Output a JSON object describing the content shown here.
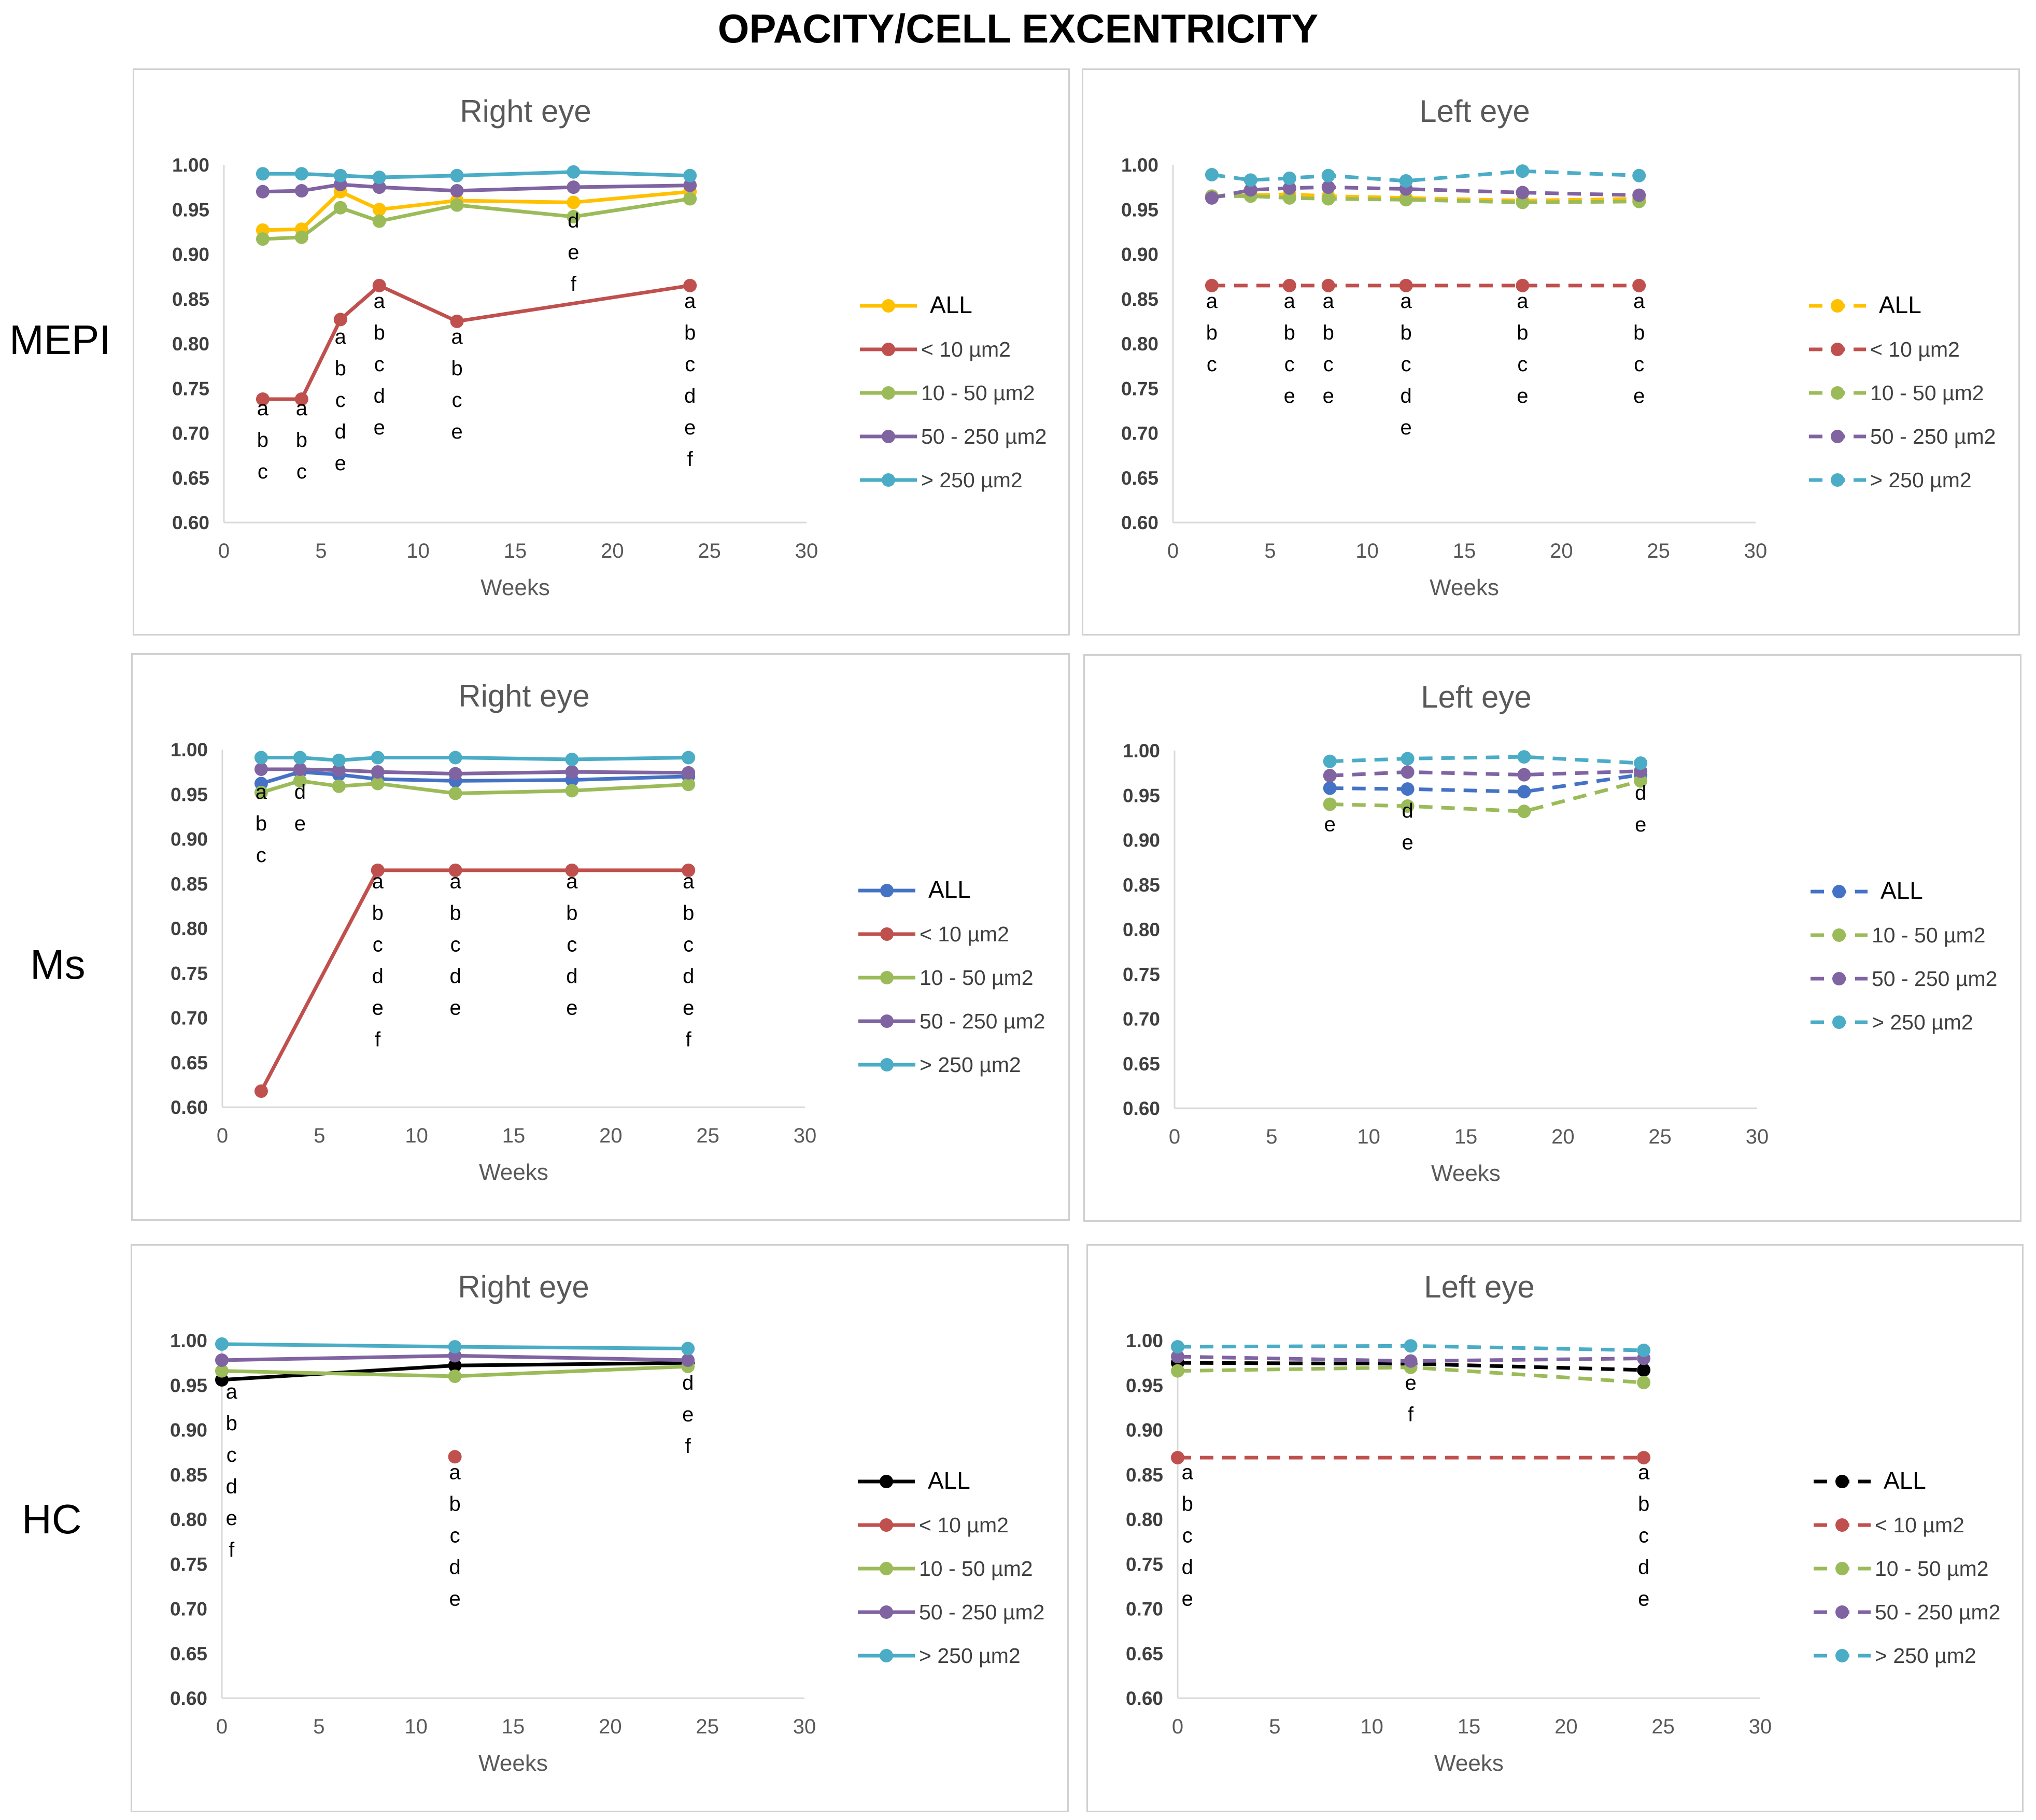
{
  "title": "OPACITY/CELL EXCENTRICITY",
  "rows": [
    "MEPI",
    "Ms",
    "HC"
  ],
  "colors": {
    "ALL": "#FFC000",
    "ALL_ms": "#4472C4",
    "ALL_hc": "#000000",
    "lt10": "#C0504D",
    "r10_50": "#9BBB59",
    "r50_250": "#8064A2",
    "gt250": "#4BACC6"
  },
  "chart_data": [
    {
      "type": "line",
      "row": "MEPI",
      "side": "right",
      "title": "Right eye",
      "xlabel": "Weeks",
      "ylabel": "",
      "xlim": [
        0,
        30
      ],
      "ylim": [
        0.6,
        1.0
      ],
      "dashed": false,
      "xticks": [
        "0",
        "5",
        "10",
        "15",
        "20",
        "25",
        "30"
      ],
      "yticks": [
        "1.00",
        "0.95",
        "0.90",
        "0.85",
        "0.80",
        "0.75",
        "0.70",
        "0.65",
        "0.60"
      ],
      "series": [
        {
          "name": "ALL",
          "color": "#FFC000",
          "x": [
            2,
            4,
            6,
            8,
            12,
            18,
            24
          ],
          "y": [
            0.927,
            0.928,
            0.97,
            0.95,
            0.96,
            0.958,
            0.97
          ]
        },
        {
          "name": "< 10 µm2",
          "color": "#C0504D",
          "x": [
            2,
            4,
            6,
            8,
            12,
            24
          ],
          "y": [
            0.738,
            0.738,
            0.827,
            0.865,
            0.825,
            0.865
          ]
        },
        {
          "name": "10 - 50 µm2",
          "color": "#9BBB59",
          "x": [
            2,
            4,
            6,
            8,
            12,
            18,
            24
          ],
          "y": [
            0.917,
            0.919,
            0.952,
            0.937,
            0.955,
            0.942,
            0.962
          ]
        },
        {
          "name": "50 - 250 µm2",
          "color": "#8064A2",
          "x": [
            2,
            4,
            6,
            8,
            12,
            18,
            24
          ],
          "y": [
            0.97,
            0.971,
            0.978,
            0.975,
            0.971,
            0.975,
            0.977
          ]
        },
        {
          "name": "> 250 µm2",
          "color": "#4BACC6",
          "x": [
            2,
            4,
            6,
            8,
            12,
            18,
            24
          ],
          "y": [
            0.99,
            0.99,
            0.988,
            0.986,
            0.988,
            0.992,
            0.988
          ]
        }
      ],
      "annotations": [
        {
          "x": 2,
          "y": 0.72,
          "lines": [
            "a",
            "b",
            "c"
          ]
        },
        {
          "x": 4,
          "y": 0.72,
          "lines": [
            "a",
            "b",
            "c"
          ]
        },
        {
          "x": 6,
          "y": 0.8,
          "lines": [
            "a",
            "b",
            "c",
            "d",
            "e"
          ]
        },
        {
          "x": 8,
          "y": 0.84,
          "lines": [
            "a",
            "b",
            "c",
            "d",
            "e"
          ]
        },
        {
          "x": 12,
          "y": 0.8,
          "lines": [
            "a",
            "b",
            "c",
            "e"
          ]
        },
        {
          "x": 18,
          "y": 0.93,
          "lines": [
            "d",
            "e",
            "f"
          ]
        },
        {
          "x": 24,
          "y": 0.84,
          "lines": [
            "a",
            "b",
            "c",
            "d",
            "e",
            "f"
          ]
        }
      ]
    },
    {
      "type": "line",
      "row": "MEPI",
      "side": "left",
      "title": "Left eye",
      "xlabel": "Weeks",
      "ylabel": "",
      "xlim": [
        0,
        30
      ],
      "ylim": [
        0.6,
        1.0
      ],
      "dashed": true,
      "xticks": [
        "0",
        "5",
        "10",
        "15",
        "20",
        "25",
        "30"
      ],
      "yticks": [
        "1.00",
        "0.95",
        "0.90",
        "0.85",
        "0.80",
        "0.75",
        "0.70",
        "0.65",
        "0.60"
      ],
      "series": [
        {
          "name": "ALL",
          "color": "#FFC000",
          "x": [
            2,
            4,
            6,
            8,
            12,
            18,
            24
          ],
          "y": [
            0.965,
            0.966,
            0.967,
            0.965,
            0.963,
            0.96,
            0.962
          ]
        },
        {
          "name": "< 10 µm2",
          "color": "#C0504D",
          "x": [
            2,
            6,
            8,
            12,
            18,
            24
          ],
          "y": [
            0.865,
            0.865,
            0.865,
            0.865,
            0.865,
            0.865
          ]
        },
        {
          "name": "10 - 50 µm2",
          "color": "#9BBB59",
          "x": [
            2,
            4,
            6,
            8,
            12,
            18,
            24
          ],
          "y": [
            0.965,
            0.965,
            0.963,
            0.962,
            0.961,
            0.958,
            0.959
          ]
        },
        {
          "name": "50 - 250 µm2",
          "color": "#8064A2",
          "x": [
            2,
            4,
            6,
            8,
            12,
            18,
            24
          ],
          "y": [
            0.963,
            0.972,
            0.974,
            0.975,
            0.973,
            0.969,
            0.966
          ]
        },
        {
          "name": "> 250 µm2",
          "color": "#4BACC6",
          "x": [
            2,
            4,
            6,
            8,
            12,
            18,
            24
          ],
          "y": [
            0.989,
            0.983,
            0.985,
            0.988,
            0.982,
            0.993,
            0.988
          ]
        }
      ],
      "annotations": [
        {
          "x": 2,
          "y": 0.84,
          "lines": [
            "a",
            "b",
            "c"
          ]
        },
        {
          "x": 6,
          "y": 0.84,
          "lines": [
            "a",
            "b",
            "c",
            "e"
          ]
        },
        {
          "x": 8,
          "y": 0.84,
          "lines": [
            "a",
            "b",
            "c",
            "e"
          ]
        },
        {
          "x": 12,
          "y": 0.84,
          "lines": [
            "a",
            "b",
            "c",
            "d",
            "e"
          ]
        },
        {
          "x": 18,
          "y": 0.84,
          "lines": [
            "a",
            "b",
            "c",
            "e"
          ]
        },
        {
          "x": 24,
          "y": 0.84,
          "lines": [
            "a",
            "b",
            "c",
            "e"
          ]
        }
      ]
    },
    {
      "type": "line",
      "row": "Ms",
      "side": "right",
      "title": "Right eye",
      "xlabel": "Weeks",
      "ylabel": "",
      "xlim": [
        0,
        30
      ],
      "ylim": [
        0.6,
        1.0
      ],
      "dashed": false,
      "xticks": [
        "0",
        "5",
        "10",
        "15",
        "20",
        "25",
        "30"
      ],
      "yticks": [
        "1.00",
        "0.95",
        "0.90",
        "0.85",
        "0.80",
        "0.75",
        "0.70",
        "0.65",
        "0.60"
      ],
      "series": [
        {
          "name": "ALL",
          "color": "#4472C4",
          "x": [
            2,
            4,
            6,
            8,
            12,
            18,
            24
          ],
          "y": [
            0.962,
            0.975,
            0.972,
            0.967,
            0.965,
            0.966,
            0.97
          ]
        },
        {
          "name": "< 10 µm2",
          "color": "#C0504D",
          "x": [
            2,
            8,
            12,
            18,
            24
          ],
          "y": [
            0.618,
            0.865,
            0.865,
            0.865,
            0.865
          ]
        },
        {
          "name": "10 - 50 µm2",
          "color": "#9BBB59",
          "x": [
            2,
            4,
            6,
            8,
            12,
            18,
            24
          ],
          "y": [
            0.952,
            0.965,
            0.959,
            0.962,
            0.951,
            0.954,
            0.961
          ]
        },
        {
          "name": "50 - 250 µm2",
          "color": "#8064A2",
          "x": [
            2,
            4,
            6,
            8,
            12,
            18,
            24
          ],
          "y": [
            0.978,
            0.978,
            0.977,
            0.975,
            0.973,
            0.975,
            0.974
          ]
        },
        {
          "name": "> 250 µm2",
          "color": "#4BACC6",
          "x": [
            2,
            4,
            6,
            8,
            12,
            18,
            24
          ],
          "y": [
            0.991,
            0.991,
            0.988,
            0.991,
            0.991,
            0.989,
            0.991
          ]
        }
      ],
      "annotations": [
        {
          "x": 2,
          "y": 0.945,
          "lines": [
            "a",
            "b",
            "c"
          ]
        },
        {
          "x": 4,
          "y": 0.945,
          "lines": [
            "d",
            "e"
          ]
        },
        {
          "x": 8,
          "y": 0.845,
          "lines": [
            "a",
            "b",
            "c",
            "d",
            "e",
            "f"
          ]
        },
        {
          "x": 12,
          "y": 0.845,
          "lines": [
            "a",
            "b",
            "c",
            "d",
            "e"
          ]
        },
        {
          "x": 18,
          "y": 0.845,
          "lines": [
            "a",
            "b",
            "c",
            "d",
            "e"
          ]
        },
        {
          "x": 24,
          "y": 0.845,
          "lines": [
            "a",
            "b",
            "c",
            "d",
            "e",
            "f"
          ]
        }
      ]
    },
    {
      "type": "line",
      "row": "Ms",
      "side": "left",
      "title": "Left eye",
      "xlabel": "Weeks",
      "ylabel": "",
      "xlim": [
        0,
        30
      ],
      "ylim": [
        0.6,
        1.0
      ],
      "dashed": true,
      "xticks": [
        "0",
        "5",
        "10",
        "15",
        "20",
        "25",
        "30"
      ],
      "yticks": [
        "1.00",
        "0.95",
        "0.90",
        "0.85",
        "0.80",
        "0.75",
        "0.70",
        "0.65",
        "0.60"
      ],
      "series": [
        {
          "name": "ALL",
          "color": "#4472C4",
          "x": [
            8,
            12,
            18,
            24
          ],
          "y": [
            0.958,
            0.957,
            0.954,
            0.973
          ]
        },
        {
          "name": "10 - 50 µm2",
          "color": "#9BBB59",
          "x": [
            8,
            12,
            18,
            24
          ],
          "y": [
            0.94,
            0.938,
            0.932,
            0.966
          ]
        },
        {
          "name": "50 - 250 µm2",
          "color": "#8064A2",
          "x": [
            8,
            12,
            18,
            24
          ],
          "y": [
            0.972,
            0.976,
            0.973,
            0.977
          ]
        },
        {
          "name": "> 250 µm2",
          "color": "#4BACC6",
          "x": [
            8,
            12,
            18,
            24
          ],
          "y": [
            0.988,
            0.991,
            0.993,
            0.986
          ]
        }
      ],
      "annotations": [
        {
          "x": 8,
          "y": 0.91,
          "lines": [
            "e"
          ]
        },
        {
          "x": 12,
          "y": 0.925,
          "lines": [
            "d",
            "e"
          ]
        },
        {
          "x": 24,
          "y": 0.945,
          "lines": [
            "d",
            "e"
          ]
        }
      ]
    },
    {
      "type": "line",
      "row": "HC",
      "side": "right",
      "title": "Right eye",
      "xlabel": "Weeks",
      "ylabel": "",
      "xlim": [
        0,
        30
      ],
      "ylim": [
        0.6,
        1.0
      ],
      "dashed": false,
      "xticks": [
        "0",
        "5",
        "10",
        "15",
        "20",
        "25",
        "30"
      ],
      "yticks": [
        "1.00",
        "0.95",
        "0.90",
        "0.85",
        "0.80",
        "0.75",
        "0.70",
        "0.65",
        "0.60"
      ],
      "series": [
        {
          "name": "ALL",
          "color": "#000000",
          "x": [
            0,
            12,
            24
          ],
          "y": [
            0.956,
            0.972,
            0.975
          ]
        },
        {
          "name": "< 10 µm2",
          "color": "#C0504D",
          "x": [
            12
          ],
          "y": [
            0.87
          ]
        },
        {
          "name": "10 - 50 µm2",
          "color": "#9BBB59",
          "x": [
            0,
            12,
            24
          ],
          "y": [
            0.966,
            0.96,
            0.971
          ]
        },
        {
          "name": "50 - 250 µm2",
          "color": "#8064A2",
          "x": [
            0,
            12,
            24
          ],
          "y": [
            0.978,
            0.983,
            0.978
          ]
        },
        {
          "name": "> 250 µm2",
          "color": "#4BACC6",
          "x": [
            0,
            12,
            24
          ],
          "y": [
            0.996,
            0.993,
            0.991
          ]
        }
      ],
      "annotations": [
        {
          "x": 0.5,
          "y": 0.935,
          "lines": [
            "a",
            "b",
            "c",
            "d",
            "e",
            "f"
          ]
        },
        {
          "x": 12,
          "y": 0.845,
          "lines": [
            "a",
            "b",
            "c",
            "d",
            "e"
          ]
        },
        {
          "x": 24,
          "y": 0.945,
          "lines": [
            "d",
            "e",
            "f"
          ]
        }
      ]
    },
    {
      "type": "line",
      "row": "HC",
      "side": "left",
      "title": "Left eye",
      "xlabel": "Weeks",
      "ylabel": "",
      "xlim": [
        0,
        30
      ],
      "ylim": [
        0.6,
        1.0
      ],
      "dashed": true,
      "xticks": [
        "0",
        "5",
        "10",
        "15",
        "20",
        "25",
        "30"
      ],
      "yticks": [
        "1.00",
        "0.95",
        "0.90",
        "0.85",
        "0.80",
        "0.75",
        "0.70",
        "0.65",
        "0.60"
      ],
      "series": [
        {
          "name": "ALL",
          "color": "#000000",
          "x": [
            0,
            12,
            24
          ],
          "y": [
            0.975,
            0.974,
            0.967
          ]
        },
        {
          "name": "< 10 µm2",
          "color": "#C0504D",
          "x": [
            0,
            24
          ],
          "y": [
            0.869,
            0.869
          ]
        },
        {
          "name": "10 - 50 µm2",
          "color": "#9BBB59",
          "x": [
            0,
            12,
            24
          ],
          "y": [
            0.966,
            0.97,
            0.953
          ]
        },
        {
          "name": "50 - 250 µm2",
          "color": "#8064A2",
          "x": [
            0,
            12,
            24
          ],
          "y": [
            0.982,
            0.977,
            0.98
          ]
        },
        {
          "name": "> 250 µm2",
          "color": "#4BACC6",
          "x": [
            0,
            12,
            24
          ],
          "y": [
            0.993,
            0.994,
            0.989
          ]
        }
      ],
      "annotations": [
        {
          "x": 0.5,
          "y": 0.845,
          "lines": [
            "a",
            "b",
            "c",
            "d",
            "e"
          ]
        },
        {
          "x": 12,
          "y": 0.945,
          "lines": [
            "e",
            "f"
          ]
        },
        {
          "x": 24,
          "y": 0.845,
          "lines": [
            "a",
            "b",
            "c",
            "d",
            "e"
          ]
        }
      ]
    }
  ]
}
